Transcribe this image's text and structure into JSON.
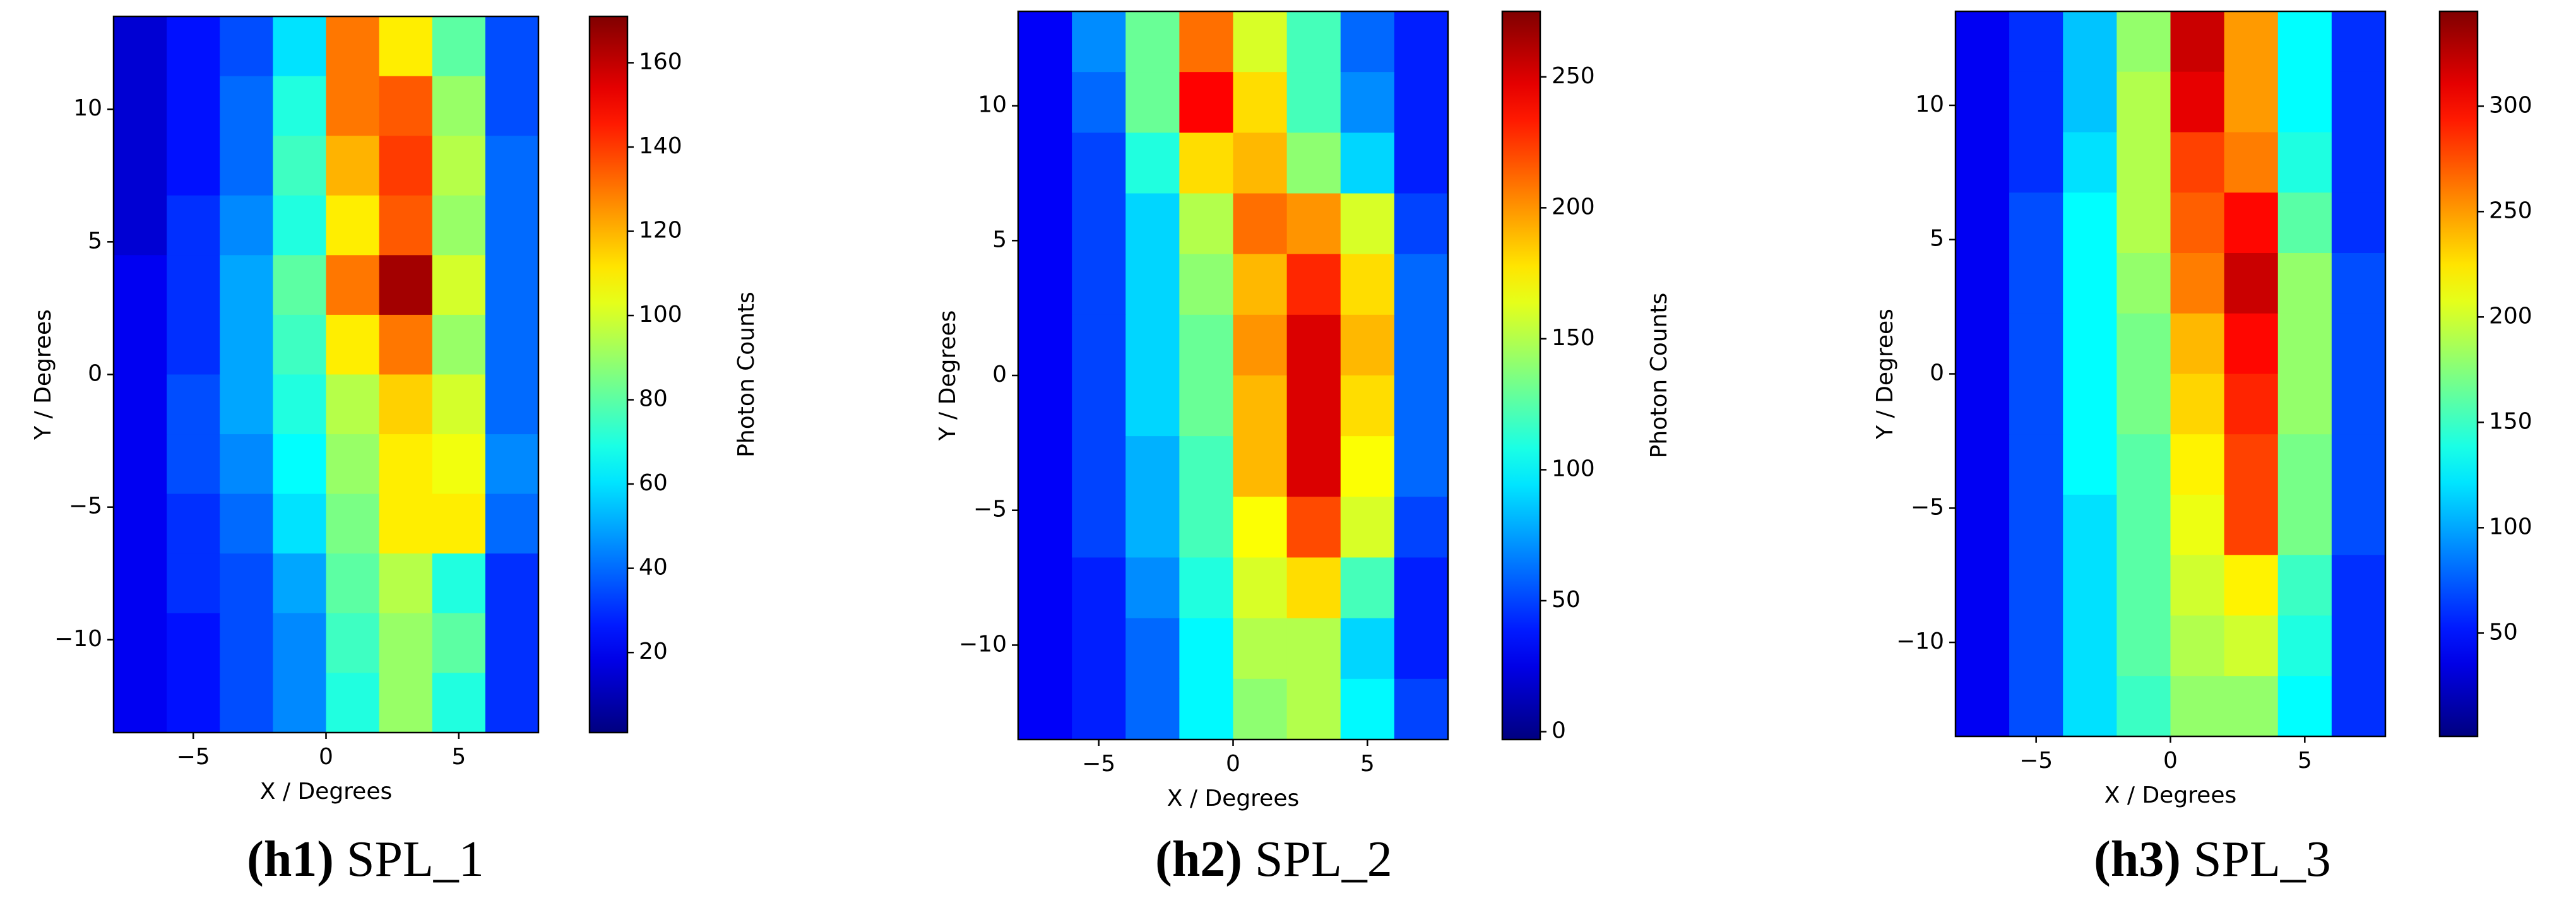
{
  "chart_data": [
    {
      "type": "heatmap",
      "label": "(h1)",
      "title": "SPL_1",
      "xlabel": "X / Degrees",
      "ylabel": "Y / Degrees",
      "zlabel": "Photon Counts",
      "colormap": "jet",
      "xlim": [
        -8,
        8
      ],
      "ylim": [
        -13.5,
        13.5
      ],
      "zlim": [
        1,
        171
      ],
      "xticks": [
        {
          "value": -5,
          "label": "−5"
        },
        0,
        5
      ],
      "yticks": [
        {
          "value": -10,
          "label": "−10"
        },
        {
          "value": -5,
          "label": "−5"
        },
        0,
        5,
        10
      ],
      "zticks": [
        20,
        40,
        60,
        80,
        100,
        120,
        140,
        160
      ],
      "z": [
        [
          15,
          25,
          35,
          60,
          130,
          110,
          80,
          35
        ],
        [
          15,
          25,
          40,
          70,
          130,
          135,
          90,
          35
        ],
        [
          15,
          25,
          40,
          75,
          120,
          140,
          95,
          40
        ],
        [
          15,
          30,
          45,
          70,
          110,
          135,
          90,
          40
        ],
        [
          20,
          30,
          50,
          80,
          130,
          165,
          100,
          40
        ],
        [
          20,
          30,
          50,
          75,
          110,
          130,
          90,
          40
        ],
        [
          20,
          35,
          50,
          70,
          95,
          115,
          100,
          40
        ],
        [
          20,
          35,
          45,
          65,
          90,
          110,
          105,
          45
        ],
        [
          20,
          30,
          40,
          60,
          85,
          110,
          110,
          40
        ],
        [
          20,
          30,
          35,
          50,
          80,
          95,
          70,
          30
        ],
        [
          20,
          25,
          35,
          45,
          75,
          90,
          80,
          30
        ],
        [
          20,
          25,
          35,
          45,
          70,
          90,
          70,
          30
        ]
      ]
    },
    {
      "type": "heatmap",
      "label": "(h2)",
      "title": "SPL_2",
      "xlabel": "X / Degrees",
      "ylabel": "Y / Degrees",
      "zlabel": "Photon Counts",
      "colormap": "jet",
      "xlim": [
        -8,
        8
      ],
      "ylim": [
        -13.5,
        13.5
      ],
      "zlim": [
        -3,
        275
      ],
      "xticks": [
        {
          "value": -5,
          "label": "−5"
        },
        0,
        5
      ],
      "yticks": [
        {
          "value": -10,
          "label": "−10"
        },
        {
          "value": -5,
          "label": "−5"
        },
        0,
        5,
        10
      ],
      "zticks": [
        0,
        50,
        100,
        150,
        200,
        250
      ],
      "z": [
        [
          30,
          70,
          130,
          210,
          160,
          120,
          60,
          40
        ],
        [
          30,
          60,
          130,
          240,
          180,
          120,
          70,
          40
        ],
        [
          30,
          50,
          110,
          180,
          190,
          140,
          90,
          40
        ],
        [
          30,
          50,
          90,
          150,
          210,
          200,
          160,
          50
        ],
        [
          30,
          50,
          90,
          140,
          190,
          230,
          180,
          60
        ],
        [
          30,
          50,
          90,
          130,
          200,
          250,
          190,
          60
        ],
        [
          30,
          50,
          90,
          130,
          190,
          250,
          180,
          60
        ],
        [
          30,
          50,
          80,
          120,
          190,
          250,
          170,
          60
        ],
        [
          30,
          50,
          80,
          120,
          170,
          220,
          160,
          50
        ],
        [
          30,
          40,
          70,
          110,
          160,
          180,
          120,
          40
        ],
        [
          30,
          40,
          60,
          100,
          150,
          150,
          90,
          40
        ],
        [
          30,
          40,
          60,
          100,
          140,
          150,
          100,
          50
        ]
      ]
    },
    {
      "type": "heatmap",
      "label": "(h3)",
      "title": "SPL_3",
      "xlabel": "X / Degrees",
      "ylabel": "Y / Degrees",
      "zlabel": "Photon Counts",
      "colormap": "jet",
      "xlim": [
        -8,
        8
      ],
      "ylim": [
        -13.5,
        13.5
      ],
      "zlim": [
        1,
        345
      ],
      "xticks": [
        {
          "value": -5,
          "label": "−5"
        },
        0,
        5
      ],
      "yticks": [
        {
          "value": -10,
          "label": "−10"
        },
        {
          "value": -5,
          "label": "−5"
        },
        0,
        5,
        10
      ],
      "zticks": [
        50,
        100,
        150,
        200,
        250,
        300
      ],
      "z": [
        [
          40,
          60,
          110,
          180,
          320,
          250,
          130,
          60
        ],
        [
          40,
          60,
          110,
          190,
          310,
          250,
          130,
          60
        ],
        [
          40,
          60,
          120,
          190,
          280,
          260,
          140,
          60
        ],
        [
          40,
          70,
          130,
          190,
          270,
          300,
          160,
          60
        ],
        [
          40,
          70,
          130,
          180,
          260,
          320,
          180,
          70
        ],
        [
          40,
          70,
          130,
          170,
          240,
          300,
          180,
          70
        ],
        [
          40,
          70,
          130,
          170,
          230,
          290,
          180,
          70
        ],
        [
          40,
          70,
          130,
          160,
          220,
          280,
          170,
          70
        ],
        [
          40,
          70,
          120,
          160,
          210,
          280,
          170,
          70
        ],
        [
          40,
          70,
          120,
          160,
          200,
          220,
          150,
          60
        ],
        [
          40,
          70,
          120,
          160,
          190,
          200,
          140,
          60
        ],
        [
          40,
          70,
          120,
          150,
          180,
          180,
          130,
          60
        ]
      ]
    }
  ]
}
